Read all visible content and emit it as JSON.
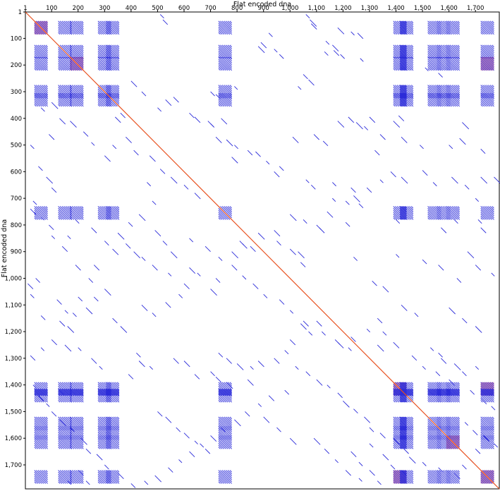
{
  "chart_data": {
    "type": "scatter",
    "subtype": "dot-plot",
    "xlabel": "Flat encoded dna",
    "ylabel": "Flat encoded dna",
    "xlim": [
      1,
      1790
    ],
    "ylim": [
      1,
      1790
    ],
    "y_inverted": true,
    "x_axis_position": "top",
    "x_ticks": [
      1,
      100,
      200,
      300,
      400,
      500,
      600,
      700,
      800,
      900,
      1000,
      1100,
      1200,
      1300,
      1400,
      1500,
      1600,
      1700
    ],
    "x_tick_labels": [
      "1",
      "100",
      "200",
      "300",
      "400",
      "500",
      "600",
      "700",
      "800",
      "900",
      "1,000",
      "1,100",
      "1,200",
      "1,300",
      "1,400",
      "1,500",
      "1,600",
      "1,700"
    ],
    "y_ticks": [
      1,
      100,
      200,
      300,
      400,
      500,
      600,
      700,
      800,
      900,
      1000,
      1100,
      1200,
      1300,
      1400,
      1500,
      1600,
      1700
    ],
    "y_tick_labels": [
      "1",
      "100",
      "200",
      "300",
      "400",
      "500",
      "600",
      "700",
      "800",
      "900",
      "1,000",
      "1,100",
      "1,200",
      "1,300",
      "1,400",
      "1,500",
      "1,600",
      "1,700"
    ],
    "grid": false,
    "colors": {
      "diagonal": "#e8501e",
      "match": "#2b2bd9",
      "strong_match": "#e0506e"
    },
    "main_diagonal": {
      "x": [
        1,
        1790
      ],
      "y": [
        1,
        1790
      ]
    },
    "repeat_blocks": {
      "positions": [
        60,
        150,
        195,
        300,
        330,
        755,
        1415,
        1440,
        1545,
        1580,
        1615,
        1745
      ],
      "size": 50,
      "overlap": [
        [
          60,
          60
        ],
        [
          195,
          195
        ],
        [
          1415,
          1415
        ],
        [
          1615,
          1615
        ],
        [
          1745,
          1745
        ],
        [
          1745,
          195
        ],
        [
          1415,
          1745
        ],
        [
          1745,
          1415
        ]
      ]
    },
    "scattered_matches": [
      [
        510,
        10
      ],
      [
        520,
        30
      ],
      [
        1060,
        10
      ],
      [
        1075,
        30
      ],
      [
        1080,
        45
      ],
      [
        1180,
        60
      ],
      [
        1230,
        75
      ],
      [
        1255,
        80
      ],
      [
        1135,
        110
      ],
      [
        1160,
        125
      ],
      [
        1165,
        145
      ],
      [
        1190,
        160
      ],
      [
        1130,
        150
      ],
      [
        1265,
        175
      ],
      [
        880,
        130
      ],
      [
        890,
        115
      ],
      [
        940,
        140
      ],
      [
        960,
        160
      ],
      [
        920,
        80
      ],
      [
        1050,
        235
      ],
      [
        1070,
        255
      ],
      [
        1030,
        280
      ],
      [
        1510,
        210
      ],
      [
        1560,
        230
      ],
      [
        790,
        280
      ],
      [
        700,
        300
      ],
      [
        720,
        310
      ],
      [
        560,
        320
      ],
      [
        530,
        330
      ],
      [
        500,
        360
      ],
      [
        400,
        260
      ],
      [
        440,
        300
      ],
      [
        360,
        380
      ],
      [
        340,
        395
      ],
      [
        740,
        400
      ],
      [
        690,
        410
      ],
      [
        700,
        420
      ],
      [
        620,
        380
      ],
      [
        640,
        395
      ],
      [
        1220,
        395
      ],
      [
        1250,
        415
      ],
      [
        1180,
        410
      ],
      [
        1390,
        410
      ],
      [
        1410,
        390
      ],
      [
        1300,
        395
      ],
      [
        1280,
        430
      ],
      [
        1650,
        415
      ],
      [
        1010,
        470
      ],
      [
        1090,
        460
      ],
      [
        1125,
        485
      ],
      [
        1340,
        460
      ],
      [
        1320,
        520
      ],
      [
        1420,
        470
      ],
      [
        1490,
        500
      ],
      [
        1600,
        500
      ],
      [
        1640,
        475
      ],
      [
        1720,
        515
      ],
      [
        720,
        470
      ],
      [
        760,
        480
      ],
      [
        790,
        500
      ],
      [
        840,
        520
      ],
      [
        870,
        525
      ],
      [
        780,
        545
      ],
      [
        910,
        560
      ],
      [
        960,
        580
      ],
      [
        940,
        600
      ],
      [
        1060,
        630
      ],
      [
        1080,
        650
      ],
      [
        1160,
        640
      ],
      [
        1230,
        660
      ],
      [
        1240,
        690
      ],
      [
        1290,
        660
      ],
      [
        1340,
        630
      ],
      [
        1380,
        600
      ],
      [
        1420,
        620
      ],
      [
        1500,
        595
      ],
      [
        1540,
        640
      ],
      [
        1610,
        620
      ],
      [
        1660,
        650
      ],
      [
        1700,
        700
      ],
      [
        1720,
        620
      ],
      [
        1770,
        620
      ],
      [
        1160,
        700
      ],
      [
        1210,
        710
      ],
      [
        1260,
        720
      ],
      [
        1140,
        750
      ],
      [
        1100,
        800
      ],
      [
        1110,
        810
      ],
      [
        1210,
        790
      ],
      [
        1050,
        780
      ],
      [
        1400,
        780
      ],
      [
        1620,
        780
      ],
      [
        1710,
        780
      ],
      [
        1570,
        810
      ],
      [
        1720,
        810
      ],
      [
        1000,
        760
      ],
      [
        940,
        820
      ],
      [
        880,
        830
      ],
      [
        820,
        870
      ],
      [
        780,
        900
      ],
      [
        810,
        860
      ],
      [
        850,
        880
      ],
      [
        950,
        860
      ],
      [
        1000,
        890
      ],
      [
        1030,
        900
      ],
      [
        1040,
        940
      ],
      [
        1240,
        920
      ],
      [
        1400,
        910
      ],
      [
        1500,
        930
      ],
      [
        1560,
        950
      ],
      [
        1670,
        900
      ],
      [
        1700,
        950
      ],
      [
        1760,
        980
      ],
      [
        1630,
        1000
      ],
      [
        1310,
        1010
      ],
      [
        1350,
        1030
      ],
      [
        1420,
        1100
      ],
      [
        1470,
        1130
      ],
      [
        1600,
        1110
      ],
      [
        1650,
        1150
      ],
      [
        1700,
        1180
      ],
      [
        1530,
        1260
      ],
      [
        1560,
        1280
      ],
      [
        1570,
        1300
      ],
      [
        1620,
        1320
      ],
      [
        1650,
        1350
      ],
      [
        1700,
        1330
      ],
      [
        1330,
        1250
      ],
      [
        1220,
        1260
      ],
      [
        1180,
        1240
      ],
      [
        1100,
        1160
      ],
      [
        1070,
        1200
      ],
      [
        1040,
        1170
      ],
      [
        1000,
        1230
      ],
      [
        980,
        1270
      ],
      [
        940,
        1300
      ],
      [
        880,
        1310
      ],
      [
        850,
        1330
      ],
      [
        840,
        1380
      ],
      [
        800,
        1320
      ],
      [
        760,
        1300
      ],
      [
        730,
        1280
      ],
      [
        720,
        1370
      ],
      [
        760,
        1390
      ],
      [
        700,
        1350
      ],
      [
        640,
        1360
      ],
      [
        600,
        1310
      ],
      [
        560,
        1300
      ],
      [
        470,
        1330
      ],
      [
        420,
        1280
      ],
      [
        430,
        1310
      ],
      [
        390,
        1360
      ],
      [
        280,
        1330
      ],
      [
        250,
        1300
      ],
      [
        200,
        1260
      ],
      [
        150,
        1250
      ],
      [
        100,
        1230
      ],
      [
        60,
        1140
      ],
      [
        20,
        1060
      ],
      [
        10,
        1020
      ],
      [
        40,
        1000
      ],
      [
        120,
        1080
      ],
      [
        150,
        1120
      ],
      [
        230,
        1110
      ],
      [
        260,
        1070
      ],
      [
        300,
        1040
      ],
      [
        200,
        1070
      ],
      [
        440,
        1100
      ],
      [
        480,
        1130
      ],
      [
        530,
        1090
      ],
      [
        580,
        1060
      ],
      [
        600,
        1020
      ],
      [
        700,
        1040
      ],
      [
        720,
        1000
      ],
      [
        650,
        980
      ],
      [
        620,
        960
      ],
      [
        540,
        980
      ],
      [
        480,
        950
      ],
      [
        440,
        920
      ],
      [
        410,
        900
      ],
      [
        380,
        870
      ],
      [
        330,
        890
      ],
      [
        260,
        950
      ],
      [
        240,
        1000
      ],
      [
        190,
        950
      ],
      [
        140,
        880
      ],
      [
        100,
        840
      ],
      [
        90,
        800
      ],
      [
        60,
        770
      ],
      [
        20,
        740
      ],
      [
        30,
        710
      ],
      [
        100,
        660
      ],
      [
        80,
        620
      ],
      [
        50,
        580
      ],
      [
        20,
        500
      ],
      [
        90,
        460
      ],
      [
        130,
        400
      ],
      [
        60,
        360
      ],
      [
        100,
        340
      ],
      [
        170,
        410
      ],
      [
        220,
        450
      ],
      [
        250,
        490
      ],
      [
        300,
        540
      ],
      [
        330,
        500
      ],
      [
        380,
        470
      ],
      [
        410,
        520
      ],
      [
        470,
        540
      ],
      [
        510,
        590
      ],
      [
        550,
        620
      ],
      [
        600,
        650
      ],
      [
        640,
        680
      ],
      [
        460,
        640
      ],
      [
        480,
        710
      ],
      [
        430,
        760
      ],
      [
        390,
        790
      ],
      [
        350,
        830
      ],
      [
        300,
        860
      ],
      [
        250,
        810
      ],
      [
        190,
        780
      ],
      [
        160,
        840
      ],
      [
        490,
        820
      ],
      [
        520,
        860
      ],
      [
        550,
        900
      ],
      [
        620,
        850
      ],
      [
        680,
        880
      ],
      [
        730,
        920
      ],
      [
        780,
        950
      ],
      [
        820,
        990
      ],
      [
        860,
        1020
      ],
      [
        900,
        1060
      ],
      [
        960,
        1080
      ],
      [
        1000,
        1120
      ],
      [
        1050,
        1160
      ],
      [
        1120,
        1200
      ],
      [
        1170,
        1230
      ],
      [
        1230,
        1220
      ],
      [
        1290,
        1190
      ],
      [
        1330,
        1150
      ],
      [
        1350,
        1200
      ],
      [
        1390,
        1240
      ],
      [
        1460,
        1290
      ],
      [
        1500,
        1330
      ],
      [
        1550,
        1350
      ],
      [
        1600,
        1380
      ],
      [
        1680,
        1420
      ],
      [
        1720,
        1450
      ],
      [
        1760,
        1480
      ],
      [
        1660,
        1540
      ],
      [
        1690,
        1570
      ],
      [
        1730,
        1590
      ],
      [
        1770,
        1620
      ],
      [
        1700,
        1640
      ],
      [
        1680,
        1680
      ],
      [
        1650,
        1700
      ],
      [
        1620,
        1730
      ],
      [
        1560,
        1710
      ],
      [
        1500,
        1690
      ],
      [
        1450,
        1670
      ],
      [
        1430,
        1640
      ],
      [
        1390,
        1600
      ],
      [
        1340,
        1580
      ],
      [
        1300,
        1560
      ],
      [
        1280,
        1520
      ],
      [
        1240,
        1490
      ],
      [
        1200,
        1460
      ],
      [
        1180,
        1430
      ],
      [
        1140,
        1400
      ],
      [
        1100,
        1380
      ],
      [
        1060,
        1350
      ],
      [
        1020,
        1330
      ],
      [
        980,
        1420
      ],
      [
        920,
        1440
      ],
      [
        880,
        1470
      ],
      [
        830,
        1500
      ],
      [
        790,
        1530
      ],
      [
        740,
        1560
      ],
      [
        700,
        1590
      ],
      [
        660,
        1620
      ],
      [
        620,
        1650
      ],
      [
        580,
        1680
      ],
      [
        540,
        1710
      ],
      [
        490,
        1740
      ],
      [
        450,
        1760
      ],
      [
        400,
        1770
      ],
      [
        350,
        1730
      ],
      [
        300,
        1700
      ],
      [
        270,
        1660
      ],
      [
        230,
        1640
      ],
      [
        210,
        1600
      ],
      [
        170,
        1560
      ],
      [
        130,
        1530
      ],
      [
        100,
        1500
      ],
      [
        80,
        1470
      ],
      [
        50,
        1440
      ],
      [
        30,
        1400
      ],
      [
        500,
        1500
      ],
      [
        530,
        1520
      ],
      [
        570,
        1560
      ],
      [
        600,
        1580
      ],
      [
        640,
        1610
      ],
      [
        680,
        1640
      ],
      [
        1090,
        1600
      ],
      [
        1130,
        1640
      ],
      [
        1170,
        1680
      ],
      [
        1210,
        1720
      ],
      [
        1260,
        1750
      ],
      [
        1000,
        1600
      ],
      [
        950,
        1560
      ],
      [
        900,
        1520
      ],
      [
        1300,
        1620
      ],
      [
        1350,
        1660
      ],
      [
        1380,
        1700
      ],
      [
        1420,
        1720
      ],
      [
        130,
        1160
      ],
      [
        160,
        1180
      ],
      [
        180,
        1130
      ],
      [
        330,
        1150
      ],
      [
        360,
        1180
      ],
      [
        60,
        1260
      ],
      [
        20,
        1290
      ],
      [
        130,
        1420
      ],
      [
        200,
        1720
      ],
      [
        230,
        1760
      ],
      [
        160,
        1760
      ],
      [
        1330,
        1760
      ],
      [
        1300,
        1720
      ],
      [
        1260,
        1690
      ],
      [
        1230,
        1650
      ]
    ]
  }
}
